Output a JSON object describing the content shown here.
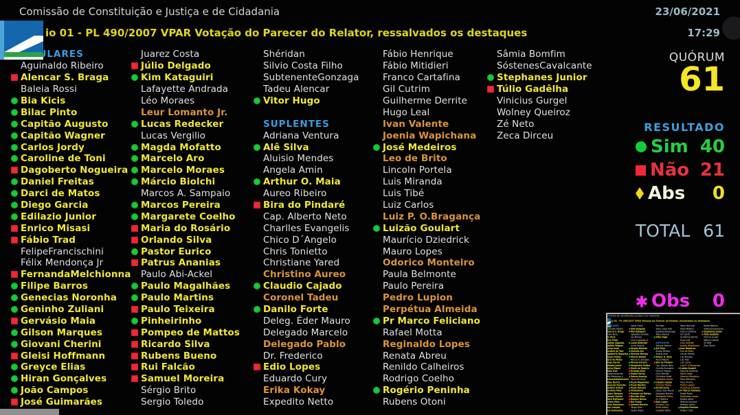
{
  "header": {
    "title": "Comissão de Constituição e Justiça e de Cidadania",
    "subtitle": "io 01 - PL 490/2007 VPAR Votação do Parecer do Relator, ressalvados os destaques",
    "date": "23/06/2021",
    "time": "17:29"
  },
  "panel": {
    "quorum_label": "QUÓRUM",
    "quorum_value": "61",
    "resultado_label": "RESULTADO",
    "sim_label": "Sim",
    "sim_value": "40",
    "nao_label": "Não",
    "nao_value": "21",
    "abs_label": "Abs",
    "abs_value": "0",
    "total_label": "TOTAL",
    "total_value": "61",
    "obs_label": "Obs",
    "obs_value": "0"
  },
  "colors": {
    "yes_green": "#17cc39",
    "no_red": "#f22838",
    "name_yellow": "#f0e838",
    "name_orange": "#dc943c",
    "header_blue": "#3c9ce0",
    "datetime_blue": "#9cb9c9",
    "quorum_yellow": "#f5e626",
    "total_blue": "#a5c3d6",
    "obs_magenta": "#f02ce8"
  },
  "board": {
    "columns": [
      {
        "items": [
          {
            "t": "TITULARES",
            "s": "header"
          },
          {
            "t": "Aguinaldo Ribeiro",
            "s": "none"
          },
          {
            "t": "Alencar S. Braga",
            "s": "nao"
          },
          {
            "t": "Baleia Rossi",
            "s": "none"
          },
          {
            "t": "Bia Kicis",
            "s": "sim"
          },
          {
            "t": "Bilac Pinto",
            "s": "sim"
          },
          {
            "t": "Capitão Augusto",
            "s": "sim"
          },
          {
            "t": "Capitão Wagner",
            "s": "sim"
          },
          {
            "t": "Carlos Jordy",
            "s": "sim"
          },
          {
            "t": "Caroline de Toni",
            "s": "sim"
          },
          {
            "t": "Dagoberto Nogueira",
            "s": "nao"
          },
          {
            "t": "Daniel Freitas",
            "s": "sim"
          },
          {
            "t": "Darci de Matos",
            "s": "sim"
          },
          {
            "t": "Diego Garcia",
            "s": "sim"
          },
          {
            "t": "Edilazio Junior",
            "s": "sim"
          },
          {
            "t": "Enrico Misasi",
            "s": "nao"
          },
          {
            "t": "Fábio Trad",
            "s": "nao"
          },
          {
            "t": "FelipeFrancischini",
            "s": "none"
          },
          {
            "t": "Félix Mendonça Jr",
            "s": "none"
          },
          {
            "t": "FernandaMelchionna",
            "s": "nao"
          },
          {
            "t": "Filipe Barros",
            "s": "sim"
          },
          {
            "t": "Genecias Noronha",
            "s": "sim"
          },
          {
            "t": "Geninho Zuliani",
            "s": "sim"
          },
          {
            "t": "Gervásio Maia",
            "s": "nao"
          },
          {
            "t": "Gilson Marques",
            "s": "sim"
          },
          {
            "t": "Giovani Cherini",
            "s": "sim"
          },
          {
            "t": "Gleisi Hoffmann",
            "s": "nao"
          },
          {
            "t": "Greyce Elias",
            "s": "sim"
          },
          {
            "t": "Hiran Gonçalves",
            "s": "sim"
          },
          {
            "t": "João Campos",
            "s": "sim"
          },
          {
            "t": "José Guimarães",
            "s": "nao"
          }
        ]
      },
      {
        "items": [
          {
            "t": "Juarez Costa",
            "s": "none"
          },
          {
            "t": "Júlio Delgado",
            "s": "nao"
          },
          {
            "t": "Kim Kataguiri",
            "s": "sim"
          },
          {
            "t": "Lafayette Andrada",
            "s": "none"
          },
          {
            "t": "Léo Moraes",
            "s": "none"
          },
          {
            "t": "Leur Lomanto Jr.",
            "s": "orange"
          },
          {
            "t": "Lucas Redecker",
            "s": "sim"
          },
          {
            "t": "Lucas Vergilio",
            "s": "none"
          },
          {
            "t": "Magda Mofatto",
            "s": "sim"
          },
          {
            "t": "Marcelo Aro",
            "s": "sim"
          },
          {
            "t": "Marcelo Moraes",
            "s": "sim"
          },
          {
            "t": "Márcio Biolchi",
            "s": "sim"
          },
          {
            "t": "Marcos A. Sampaio",
            "s": "none"
          },
          {
            "t": "Marcos Pereira",
            "s": "sim"
          },
          {
            "t": "Margarete Coelho",
            "s": "sim"
          },
          {
            "t": "Maria do Rosário",
            "s": "nao"
          },
          {
            "t": "Orlando Silva",
            "s": "nao"
          },
          {
            "t": "Pastor Eurico",
            "s": "sim"
          },
          {
            "t": "Patrus Ananias",
            "s": "nao"
          },
          {
            "t": "Paulo Abi-Ackel",
            "s": "none"
          },
          {
            "t": "Paulo Magalhães",
            "s": "sim"
          },
          {
            "t": "Paulo Martins",
            "s": "sim"
          },
          {
            "t": "Paulo Teixeira",
            "s": "nao"
          },
          {
            "t": "Pinheirinho",
            "s": "sim"
          },
          {
            "t": "Pompeo de Mattos",
            "s": "nao"
          },
          {
            "t": "Ricardo Silva",
            "s": "nao"
          },
          {
            "t": "Rubens Bueno",
            "s": "nao"
          },
          {
            "t": "Rui Falcão",
            "s": "nao"
          },
          {
            "t": "Samuel Moreira",
            "s": "nao"
          },
          {
            "t": "Sérgio Brito",
            "s": "none"
          },
          {
            "t": "Sergio Toledo",
            "s": "none"
          }
        ]
      },
      {
        "items": [
          {
            "t": "Shéridan",
            "s": "none"
          },
          {
            "t": "Silvio Costa Filho",
            "s": "none"
          },
          {
            "t": "SubtenenteGonzaga",
            "s": "none"
          },
          {
            "t": "Tadeu Alencar",
            "s": "none"
          },
          {
            "t": "Vitor Hugo",
            "s": "sim"
          },
          {
            "t": "",
            "s": "blank"
          },
          {
            "t": "SUPLENTES",
            "s": "header"
          },
          {
            "t": "Adriana Ventura",
            "s": "none"
          },
          {
            "t": "Alê Silva",
            "s": "sim"
          },
          {
            "t": "Aluisio Mendes",
            "s": "none"
          },
          {
            "t": "Angela Amin",
            "s": "none"
          },
          {
            "t": "Arthur O. Maia",
            "s": "sim"
          },
          {
            "t": "Aureo Ribeiro",
            "s": "none"
          },
          {
            "t": "Bira do Pindaré",
            "s": "nao"
          },
          {
            "t": "Cap. Alberto Neto",
            "s": "none"
          },
          {
            "t": "Charlles Evangelis",
            "s": "none"
          },
          {
            "t": "Chico D´Angelo",
            "s": "none"
          },
          {
            "t": "Chris Tonietto",
            "s": "none"
          },
          {
            "t": "Christiane Yared",
            "s": "none"
          },
          {
            "t": "Christino Aureo",
            "s": "orange"
          },
          {
            "t": "Claudio Cajado",
            "s": "sim"
          },
          {
            "t": "Coronel Tadeu",
            "s": "orange"
          },
          {
            "t": "Danilo Forte",
            "s": "sim"
          },
          {
            "t": "Deleg. Éder Mauro",
            "s": "none"
          },
          {
            "t": "Delegado Marcelo",
            "s": "none"
          },
          {
            "t": "Delegado Pablo",
            "s": "orange"
          },
          {
            "t": "Dr. Frederico",
            "s": "none"
          },
          {
            "t": "Edio Lopes",
            "s": "nao"
          },
          {
            "t": "Eduardo Cury",
            "s": "none"
          },
          {
            "t": "Erika Kokay",
            "s": "orange"
          },
          {
            "t": "Expedito Netto",
            "s": "none"
          }
        ]
      },
      {
        "items": [
          {
            "t": "Fábio Henrique",
            "s": "none"
          },
          {
            "t": "Fábio Mitidieri",
            "s": "none"
          },
          {
            "t": "Franco Cartafina",
            "s": "none"
          },
          {
            "t": "Gil Cutrim",
            "s": "none"
          },
          {
            "t": "Guilherme Derrite",
            "s": "none"
          },
          {
            "t": "Hugo Leal",
            "s": "none"
          },
          {
            "t": "Ivan Valente",
            "s": "orange"
          },
          {
            "t": "Joenia Wapichana",
            "s": "orange"
          },
          {
            "t": "José Medeiros",
            "s": "sim"
          },
          {
            "t": "Leo de Brito",
            "s": "orange"
          },
          {
            "t": "Lincoln Portela",
            "s": "none"
          },
          {
            "t": "Luis Miranda",
            "s": "none"
          },
          {
            "t": "Luis Tibé",
            "s": "none"
          },
          {
            "t": "Luiz Carlos",
            "s": "none"
          },
          {
            "t": "Luiz P. O.Bragança",
            "s": "orange"
          },
          {
            "t": "Luizão Goulart",
            "s": "sim"
          },
          {
            "t": "Maurício Dziedrick",
            "s": "none"
          },
          {
            "t": "Mauro Lopes",
            "s": "none"
          },
          {
            "t": "Odorico Monteiro",
            "s": "orange"
          },
          {
            "t": "Paula Belmonte",
            "s": "none"
          },
          {
            "t": "Paulo Pereira",
            "s": "none"
          },
          {
            "t": "Pedro Lupion",
            "s": "orange"
          },
          {
            "t": "Perpétua Almeida",
            "s": "orange"
          },
          {
            "t": "Pr Marco Feliciano",
            "s": "sim"
          },
          {
            "t": "Rafael Motta",
            "s": "none"
          },
          {
            "t": "Reginaldo Lopes",
            "s": "orange"
          },
          {
            "t": "Renata Abreu",
            "s": "none"
          },
          {
            "t": "Renildo Calheiros",
            "s": "none"
          },
          {
            "t": "Rodrigo Coelho",
            "s": "none"
          },
          {
            "t": "Rogério Peninha",
            "s": "sim"
          },
          {
            "t": "Rubens Otoni",
            "s": "none"
          }
        ]
      },
      {
        "items": [
          {
            "t": "Sâmia Bomfim",
            "s": "none"
          },
          {
            "t": "SóstenesCavalcante",
            "s": "none"
          },
          {
            "t": "Stephanes Junior",
            "s": "sim"
          },
          {
            "t": "Túlio Gadêlha",
            "s": "nao"
          },
          {
            "t": "Vinicius Gurgel",
            "s": "none"
          },
          {
            "t": "Wolney Queiroz",
            "s": "none"
          },
          {
            "t": "Zé Neto",
            "s": "none"
          },
          {
            "t": "Zeca Dirceu",
            "s": "none"
          }
        ]
      }
    ]
  }
}
